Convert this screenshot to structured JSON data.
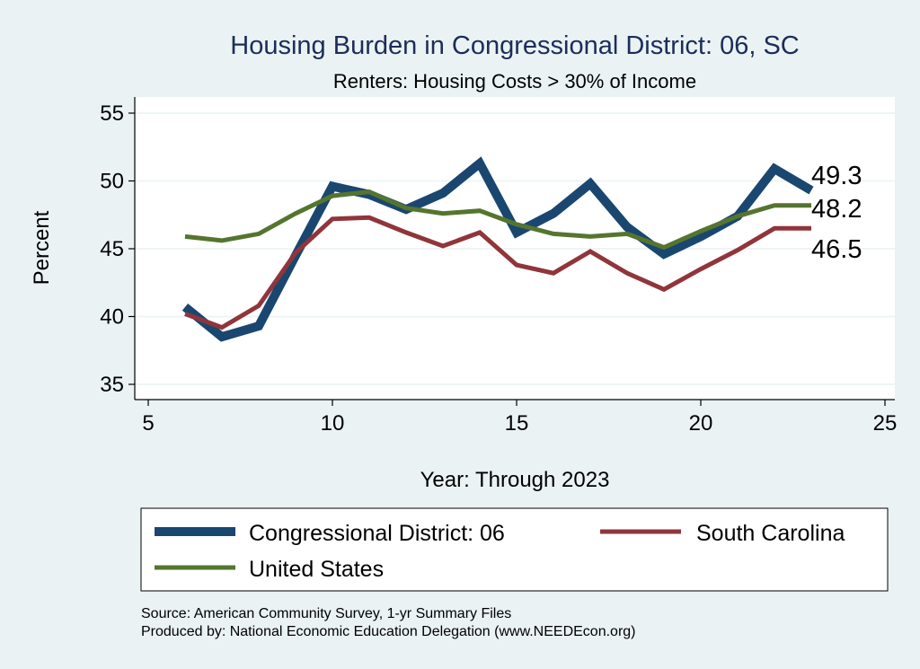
{
  "chart_data": {
    "type": "line",
    "title": "Housing Burden in Congressional District:  06, SC",
    "subtitle": "Renters: Housing Costs > 30% of Income",
    "xlabel": "Year: Through 2023",
    "ylabel": "Percent",
    "xlim": [
      5,
      25
    ],
    "ylim": [
      35,
      55
    ],
    "x_ticks": [
      5,
      10,
      15,
      20,
      25
    ],
    "y_ticks": [
      35,
      40,
      45,
      50,
      55
    ],
    "grid": true,
    "x": [
      6,
      7,
      8,
      9,
      10,
      11,
      12,
      13,
      14,
      15,
      16,
      17,
      18,
      19,
      20,
      21,
      22,
      23
    ],
    "series": [
      {
        "name": "Congressional District:  06",
        "color": "#1a476f",
        "values": [
          40.7,
          38.5,
          39.3,
          44.5,
          49.6,
          49.0,
          47.9,
          49.1,
          51.3,
          46.2,
          47.6,
          49.8,
          46.6,
          44.6,
          45.9,
          47.4,
          50.9,
          49.3
        ],
        "end_label": "49.3"
      },
      {
        "name": "South Carolina",
        "color": "#90353b",
        "values": [
          40.2,
          39.2,
          40.8,
          44.7,
          47.2,
          47.3,
          46.2,
          45.2,
          46.2,
          43.8,
          43.2,
          44.8,
          43.2,
          42.0,
          43.5,
          44.9,
          46.5,
          46.5
        ],
        "end_label": "46.5"
      },
      {
        "name": "United States",
        "color": "#55752f",
        "values": [
          45.9,
          45.6,
          46.1,
          47.6,
          48.9,
          49.2,
          48.0,
          47.6,
          47.8,
          46.8,
          46.1,
          45.9,
          46.1,
          45.1,
          46.3,
          47.4,
          48.2,
          48.2
        ],
        "end_label": "48.2"
      }
    ],
    "legend_position": "bottom"
  },
  "source_lines": [
    "Source: American Community Survey, 1-yr Summary Files",
    "Produced by: National Economic Education Delegation (www.NEEDEcon.org)"
  ]
}
